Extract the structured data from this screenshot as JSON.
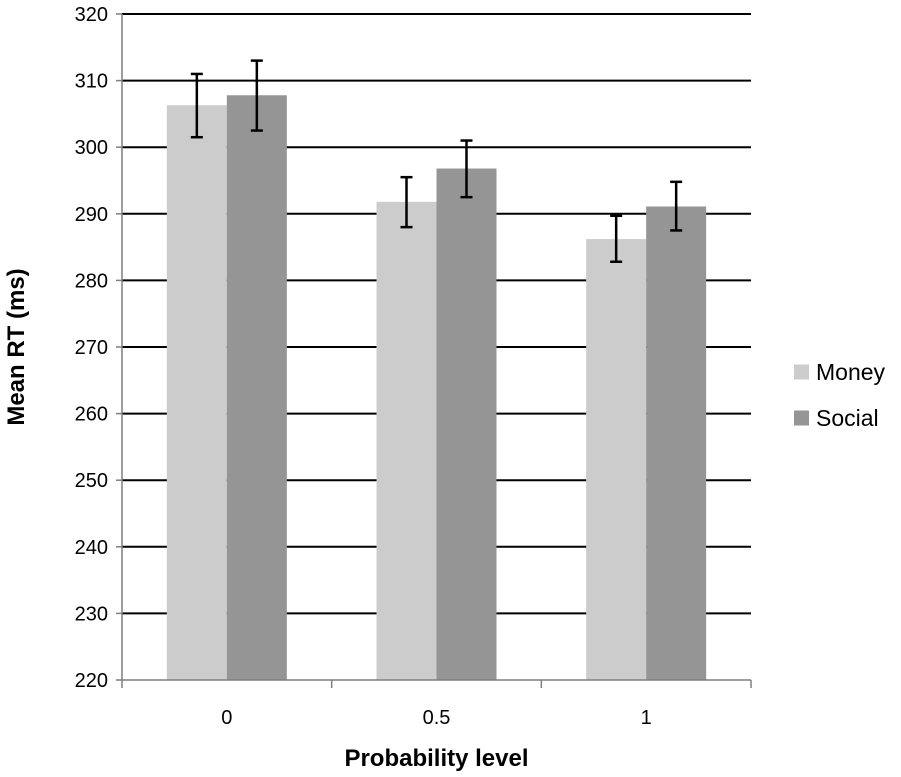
{
  "chart_data": {
    "type": "bar",
    "title": "",
    "xlabel": "Probability level",
    "ylabel": "Mean RT (ms)",
    "categories": [
      "0",
      "0.5",
      "1"
    ],
    "ylim": [
      220,
      320
    ],
    "yticks": [
      220,
      230,
      240,
      250,
      260,
      270,
      280,
      290,
      300,
      310,
      320
    ],
    "grid": true,
    "legend_position": "right",
    "series": [
      {
        "name": "Money",
        "color": "#cccccc",
        "values": [
          306.3,
          291.8,
          286.2
        ],
        "error_low": [
          301.5,
          288.0,
          282.8
        ],
        "error_high": [
          311.0,
          295.5,
          289.7
        ]
      },
      {
        "name": "Social",
        "color": "#959595",
        "values": [
          307.8,
          296.8,
          291.1
        ],
        "error_low": [
          302.5,
          292.5,
          287.5
        ],
        "error_high": [
          313.0,
          301.0,
          294.8
        ]
      }
    ]
  }
}
